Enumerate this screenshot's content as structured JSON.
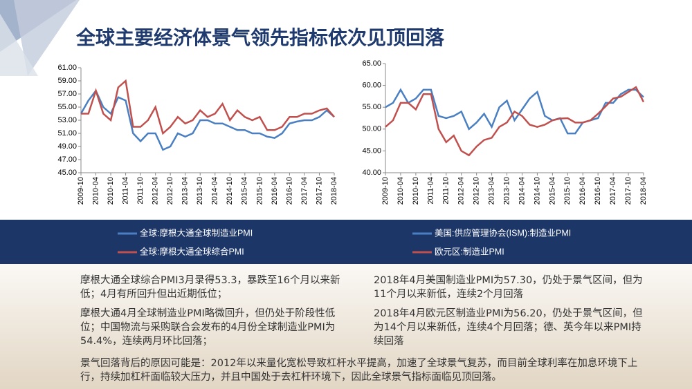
{
  "title": "全球主要经济体景气领先指标依次见顶回落",
  "chart_data": [
    {
      "type": "line",
      "categories": [
        "2009-10",
        null,
        "2010-04",
        null,
        "2010-10",
        null,
        "2011-04",
        null,
        "2011-10",
        null,
        "2012-04",
        null,
        "2012-10",
        null,
        "2013-04",
        null,
        "2013-10",
        null,
        "2014-04",
        null,
        "2014-10",
        null,
        "2015-04",
        null,
        "2015-10",
        null,
        "2016-04",
        null,
        "2016-10",
        null,
        "2017-04",
        null,
        "2017-10",
        null,
        "2018-04"
      ],
      "series": [
        {
          "name": "全球:摩根大通全球制造业PMI",
          "color": "#4a7fc1",
          "values": [
            54,
            56,
            57.5,
            55,
            54,
            56.5,
            56,
            51,
            49.8,
            51,
            51,
            48.5,
            49,
            51,
            50.5,
            51,
            53,
            53,
            52.5,
            52.5,
            52,
            51.5,
            51.5,
            51,
            51,
            50.5,
            50.3,
            51,
            52.5,
            52.8,
            53,
            53,
            53.5,
            54.5,
            53.5
          ]
        },
        {
          "name": "全球:摩根大通全球综合PMI",
          "color": "#c0504d",
          "values": [
            54,
            54,
            57.5,
            54,
            53,
            58,
            59,
            52,
            52,
            53,
            55,
            51,
            52,
            53.5,
            52.5,
            53,
            54.5,
            53.5,
            54,
            55.5,
            53,
            54.5,
            53.5,
            53,
            53.5,
            51.5,
            51.5,
            52,
            53.5,
            53.5,
            54,
            54,
            54.5,
            54.8,
            53.5
          ]
        }
      ],
      "ylim": [
        45,
        61
      ],
      "yticks": [
        {
          "value": 45,
          "label": "45.00"
        },
        {
          "value": 47,
          "label": "47.00"
        },
        {
          "value": 49,
          "label": "49.00"
        },
        {
          "value": 51,
          "label": "51.00"
        },
        {
          "value": 53,
          "label": "53.00"
        },
        {
          "value": 55,
          "label": "55.00"
        },
        {
          "value": 57,
          "label": "57.00"
        },
        {
          "value": 59,
          "label": "59.00"
        },
        {
          "value": 61,
          "label": "61.00"
        }
      ]
    },
    {
      "type": "line",
      "categories": [
        "2009-10",
        null,
        "2010-04",
        null,
        "2010-10",
        null,
        "2011-04",
        null,
        "2011-10",
        null,
        "2012-04",
        null,
        "2012-10",
        null,
        "2013-04",
        null,
        "2013-10",
        null,
        "2014-04",
        null,
        "2014-10",
        null,
        "2015-04",
        null,
        "2015-10",
        null,
        "2016-04",
        null,
        "2016-10",
        null,
        "2017-04",
        null,
        "2017-10",
        null,
        "2018-04"
      ],
      "series": [
        {
          "name": "美国:供应管理协会(ISM):制造业PMI",
          "color": "#4a7fc1",
          "values": [
            55,
            56,
            59,
            56,
            57,
            59,
            59,
            53,
            52.5,
            53,
            54,
            50,
            51.5,
            53.5,
            50.5,
            55,
            56.5,
            52,
            54.5,
            57,
            58.5,
            53,
            52,
            52.5,
            49,
            49,
            51.5,
            52,
            52.5,
            56,
            56,
            58,
            59,
            59,
            57.3
          ]
        },
        {
          "name": "欧元区:制造业PMI",
          "color": "#c0504d",
          "values": [
            50.5,
            52,
            56,
            56,
            54.5,
            58,
            58,
            50,
            47,
            48.5,
            45,
            44,
            46,
            47.5,
            48,
            50.5,
            51.5,
            54,
            53,
            51,
            50.5,
            51,
            52,
            52.4,
            52.5,
            51.5,
            51.5,
            52,
            53.5,
            55.2,
            57,
            57.4,
            58.5,
            59.6,
            56.2
          ]
        }
      ],
      "ylim": [
        40,
        65
      ],
      "yticks": [
        {
          "value": 40,
          "label": "40.00"
        },
        {
          "value": 45,
          "label": "45.00"
        },
        {
          "value": 50,
          "label": "50.00"
        },
        {
          "value": 55,
          "label": "55.00"
        },
        {
          "value": 60,
          "label": "60.00"
        },
        {
          "value": 65,
          "label": "65.00"
        }
      ]
    }
  ],
  "paragraphs": [
    "摩根大通全球综合PMI3月录得53.3，暴跌至16个月以来新低；4月有所回升但出近期低位；",
    "摩根大通4月全球制造业PMI略微回升，但仍处于阶段性低位；中国物流与采购联合会发布的4月份全球制造业PMI为54.4%，连续两月环比回落；",
    "2018年4月美国制造业PMI为57.30，仍处于景气区间，但为11个月以来新低，连续2个月回落",
    "2018年4月欧元区制造业PMI为56.20，仍处于景气区间，但为14个月以来新低，连续4个月回落；德、英今年以来PMI持续回落",
    "景气回落背后的原因可能是：2012年以来量化宽松导致杠杆水平提高，加速了全球景气复苏，而目前全球利率在加息环境下上行，持续加杠杆面临较大压力，并且中国处于去杠杆环境下，因此全球景气指标面临见顶回落。"
  ]
}
